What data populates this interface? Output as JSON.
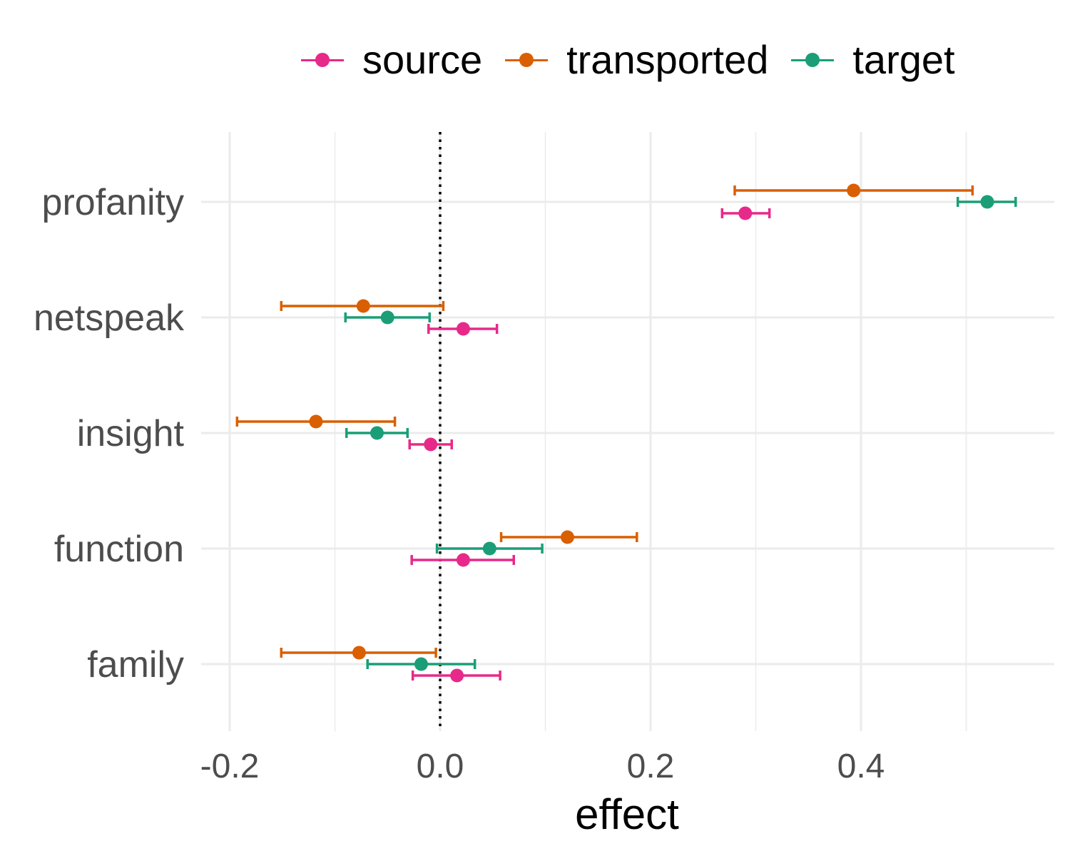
{
  "chart_data": {
    "type": "scatter",
    "subtype": "dot-and-error-bar",
    "xlabel": "effect",
    "ylabel": "",
    "xlim": [
      -0.225,
      0.58
    ],
    "x_ticks": [
      -0.2,
      0.0,
      0.2,
      0.4
    ],
    "x_tick_labels": [
      "-0.2",
      "0.0",
      "0.2",
      "0.4"
    ],
    "categories": [
      "profanity",
      "netspeak",
      "insight",
      "function",
      "family"
    ],
    "reference_line": {
      "x": 0.0,
      "style": "dotted",
      "color": "#000000"
    },
    "grid": true,
    "legend_position": "top",
    "series": [
      {
        "name": "source",
        "color": "#E7298A",
        "values": [
          0.29,
          0.022,
          -0.009,
          0.022,
          0.016
        ],
        "lower": [
          0.268,
          -0.011,
          -0.029,
          -0.027,
          -0.026
        ],
        "upper": [
          0.313,
          0.054,
          0.011,
          0.07,
          0.057
        ]
      },
      {
        "name": "transported",
        "color": "#D95F02",
        "values": [
          0.393,
          -0.073,
          -0.118,
          0.121,
          -0.077
        ],
        "lower": [
          0.28,
          -0.151,
          -0.193,
          0.058,
          -0.151
        ],
        "upper": [
          0.506,
          0.003,
          -0.043,
          0.187,
          -0.004
        ]
      },
      {
        "name": "target",
        "color": "#1B9E77",
        "values": [
          0.52,
          -0.05,
          -0.06,
          0.047,
          -0.018
        ],
        "lower": [
          0.492,
          -0.09,
          -0.089,
          -0.003,
          -0.069
        ],
        "upper": [
          0.547,
          -0.01,
          -0.031,
          0.097,
          0.033
        ]
      }
    ]
  },
  "legend": {
    "items": [
      {
        "label": "source",
        "color": "#E7298A"
      },
      {
        "label": "transported",
        "color": "#D95F02"
      },
      {
        "label": "target",
        "color": "#1B9E77"
      }
    ]
  }
}
